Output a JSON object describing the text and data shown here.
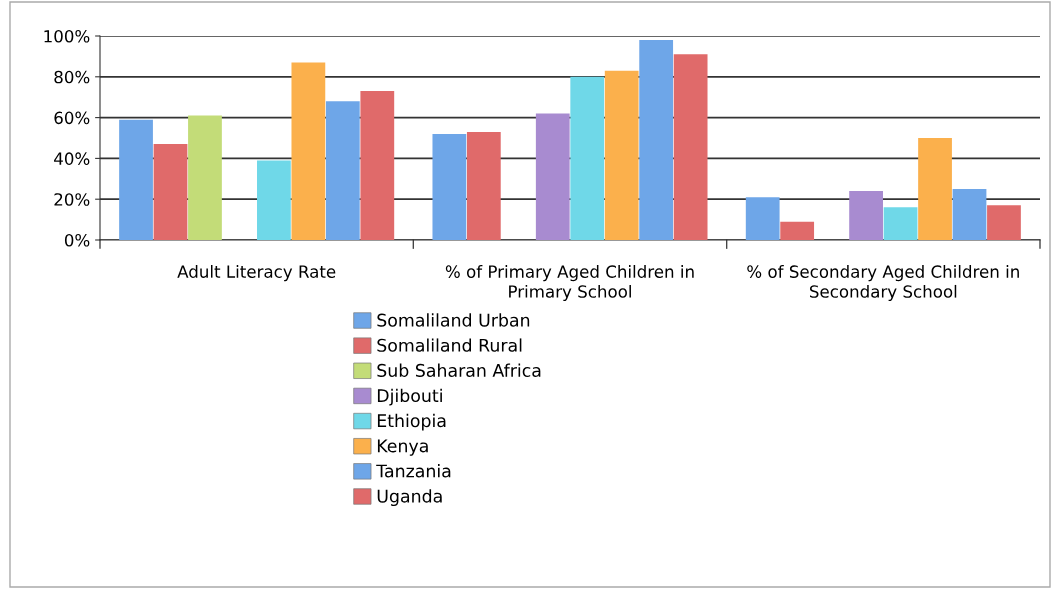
{
  "chart_data": {
    "type": "bar",
    "categories": [
      "Adult Literacy Rate",
      "% of Primary Aged Children in Primary School",
      "% of Secondary Aged Children in Secondary School"
    ],
    "series": [
      {
        "name": "Somaliland Urban",
        "color": "#6ea6e8",
        "values": [
          59,
          52,
          21
        ]
      },
      {
        "name": "Somaliland Rural",
        "color": "#e06a6a",
        "values": [
          47,
          53,
          9
        ]
      },
      {
        "name": "Sub Saharan Africa",
        "color": "#c3dc78",
        "values": [
          61,
          null,
          null
        ]
      },
      {
        "name": "Djibouti",
        "color": "#a88bd0",
        "values": [
          null,
          62,
          24
        ]
      },
      {
        "name": "Ethiopia",
        "color": "#6fd8e8",
        "values": [
          39,
          80,
          16
        ]
      },
      {
        "name": "Kenya",
        "color": "#fbb04c",
        "values": [
          87,
          83,
          50
        ]
      },
      {
        "name": "Tanzania",
        "color": "#6ea6e8",
        "values": [
          68,
          98,
          25
        ]
      },
      {
        "name": "Uganda",
        "color": "#e06a6a",
        "values": [
          73,
          91,
          17
        ]
      }
    ],
    "ylim": [
      0,
      100
    ],
    "yticks": [
      {
        "value": 0,
        "label": "0%"
      },
      {
        "value": 20,
        "label": "20%"
      },
      {
        "value": 40,
        "label": "40%"
      },
      {
        "value": 60,
        "label": "60%"
      },
      {
        "value": 80,
        "label": "80%"
      },
      {
        "value": 100,
        "label": "100%"
      }
    ],
    "grid": "y",
    "legend": "bottom"
  }
}
